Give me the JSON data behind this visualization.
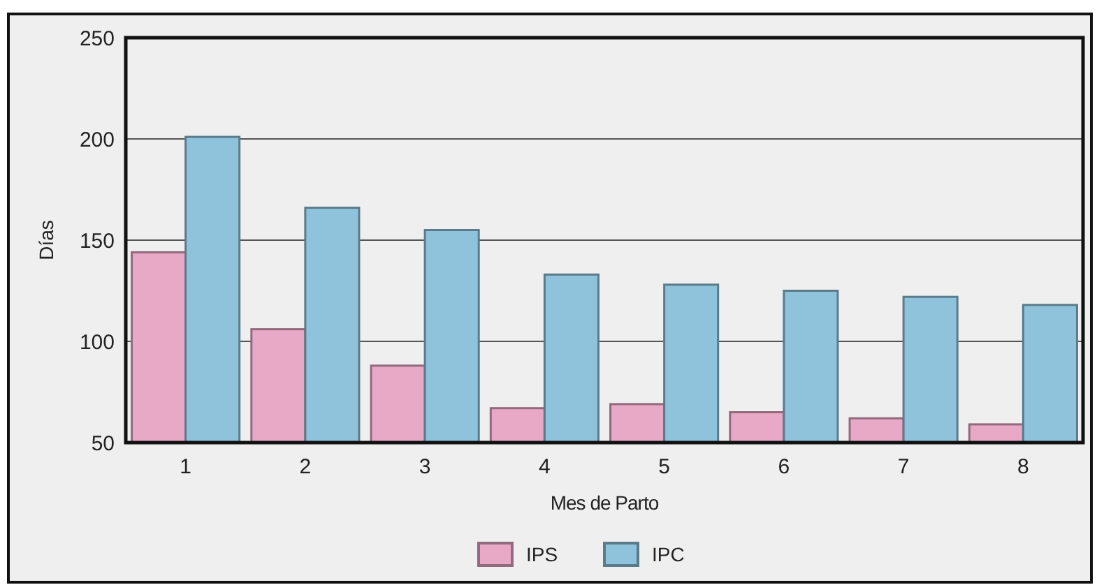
{
  "chart_data": {
    "type": "bar",
    "xlabel": "Mes de Parto",
    "ylabel": "Días",
    "categories": [
      "1",
      "2",
      "3",
      "4",
      "5",
      "6",
      "7",
      "8"
    ],
    "series": [
      {
        "name": "IPS",
        "color": "#e8a9c6",
        "values": [
          144,
          106,
          88,
          67,
          69,
          65,
          62,
          59
        ]
      },
      {
        "name": "IPC",
        "color": "#8fc3dc",
        "values": [
          201,
          166,
          155,
          133,
          128,
          125,
          122,
          118
        ]
      }
    ],
    "ylim": [
      50,
      250
    ],
    "yticks": [
      50,
      100,
      150,
      200,
      250
    ],
    "grid": "y",
    "legend": "bottom"
  }
}
